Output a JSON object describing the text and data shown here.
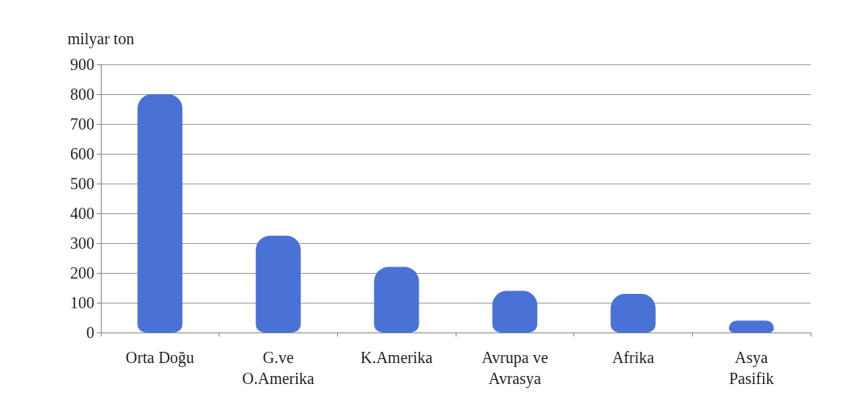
{
  "chart_data": {
    "type": "bar",
    "ylabel": "milyar ton",
    "categories": [
      "Orta Doğu",
      "G.ve\nO.Amerika",
      "K.Amerika",
      "Avrupa ve\nAvrasya",
      "Afrika",
      "Asya\nPasifik"
    ],
    "values": [
      800,
      325,
      220,
      140,
      130,
      40
    ],
    "color": "#4a72d6",
    "ylim": [
      0,
      900
    ],
    "yticks": [
      0,
      100,
      200,
      300,
      400,
      500,
      600,
      700,
      800,
      900
    ],
    "grid": "y"
  }
}
